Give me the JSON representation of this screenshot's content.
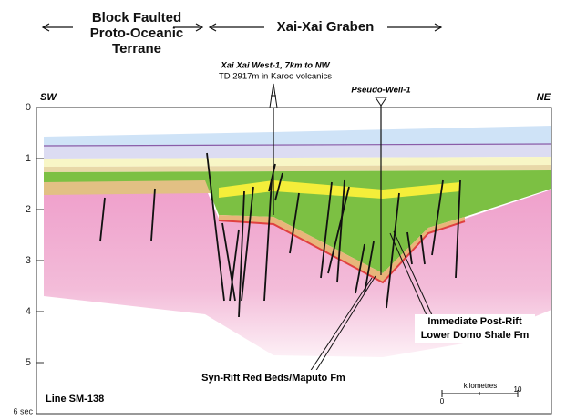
{
  "header": {
    "left_title": [
      "Block Faulted",
      "Proto-Oceanic",
      "Terrane"
    ],
    "center_title": "Xai-Xai Graben"
  },
  "wells": {
    "xai_xai": {
      "name": "Xai Xai West-1, 7km to NW",
      "note": "TD 2917m in Karoo volcanics"
    },
    "pseudo": "Pseudo-Well-1"
  },
  "directions": {
    "left": "SW",
    "right": "NE"
  },
  "depth_axis": [
    "0",
    "1",
    "2",
    "3",
    "4",
    "5",
    "6 sec"
  ],
  "annotations": {
    "post_rift": [
      "Immediate Post-Rift",
      "Lower Domo Shale Fm"
    ],
    "syn_rift": "Syn-Rift Red Beds/Maputo Fm"
  },
  "line_name": "Line SM-138",
  "scale_bar": {
    "title": "kilometres",
    "start": "0",
    "end": "10"
  }
}
